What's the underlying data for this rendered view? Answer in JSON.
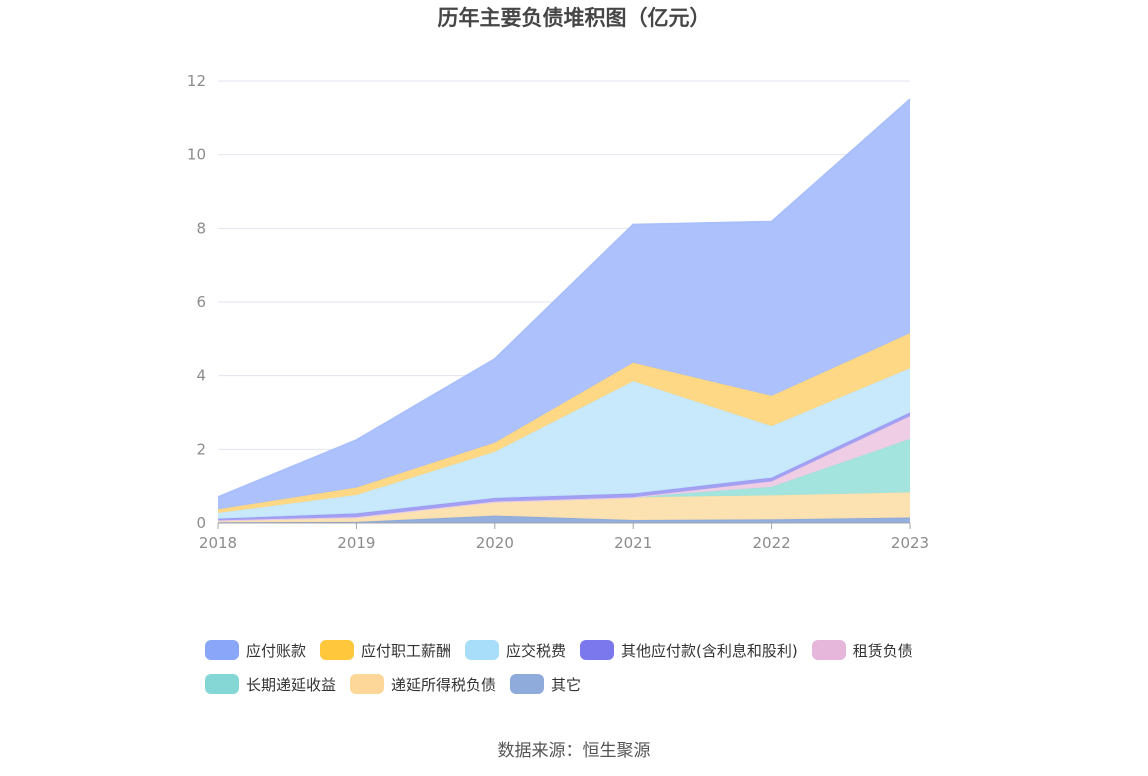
{
  "chart_data": {
    "type": "area",
    "stacked": true,
    "title": "历年主要负债堆积图（亿元）",
    "xlabel": "",
    "ylabel": "",
    "x": [
      "2018",
      "2019",
      "2020",
      "2021",
      "2022",
      "2023"
    ],
    "ylim": [
      0,
      12
    ],
    "yticks": [
      "0",
      "2",
      "4",
      "6",
      "8",
      "10",
      "12"
    ],
    "grid": true,
    "legend_position": "bottom",
    "series": [
      {
        "name": "其它",
        "color": "#8eabdb",
        "values": [
          0.02,
          0.03,
          0.2,
          0.08,
          0.1,
          0.15
        ]
      },
      {
        "name": "递延所得税负债",
        "color": "#fde0ad",
        "values": [
          0.05,
          0.13,
          0.38,
          0.62,
          0.65,
          0.68
        ]
      },
      {
        "name": "长期递延收益",
        "color": "#9ee3dc",
        "values": [
          0.0,
          0.0,
          0.0,
          0.0,
          0.23,
          1.45
        ]
      },
      {
        "name": "租赁负债",
        "color": "#eecbe4",
        "values": [
          0.0,
          0.0,
          0.0,
          0.0,
          0.15,
          0.62
        ]
      },
      {
        "name": "其他应付款(含利息和股利)",
        "color": "#9e9cf2",
        "values": [
          0.05,
          0.1,
          0.1,
          0.1,
          0.1,
          0.1
        ]
      },
      {
        "name": "应交税费",
        "color": "#c4e8fb",
        "values": [
          0.15,
          0.5,
          1.25,
          3.05,
          1.4,
          1.2
        ]
      },
      {
        "name": "应付职工薪酬",
        "color": "#ffd67f",
        "values": [
          0.1,
          0.2,
          0.25,
          0.5,
          0.82,
          0.95
        ]
      },
      {
        "name": "应付账款",
        "color": "#a9bffc",
        "values": [
          0.33,
          1.29,
          2.27,
          3.75,
          4.73,
          6.35
        ]
      }
    ]
  },
  "legend": [
    {
      "label": "应付账款",
      "color": "#8aa6f8"
    },
    {
      "label": "应付职工薪酬",
      "color": "#ffc83c"
    },
    {
      "label": "应交税费",
      "color": "#a9defa"
    },
    {
      "label": "其他应付款(含利息和股利)",
      "color": "#7b78ee"
    },
    {
      "label": "租赁负债",
      "color": "#e6b6db"
    },
    {
      "label": "长期递延收益",
      "color": "#84d7d5"
    },
    {
      "label": "递延所得税负债",
      "color": "#fdd69a"
    },
    {
      "label": "其它",
      "color": "#8eabdb"
    }
  ],
  "source": "数据来源：恒生聚源"
}
